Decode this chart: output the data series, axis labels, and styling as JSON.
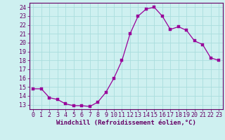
{
  "x": [
    0,
    1,
    2,
    3,
    4,
    5,
    6,
    7,
    8,
    9,
    10,
    11,
    12,
    13,
    14,
    15,
    16,
    17,
    18,
    19,
    20,
    21,
    22,
    23
  ],
  "y": [
    14.8,
    14.8,
    13.8,
    13.6,
    13.1,
    12.9,
    12.9,
    12.8,
    13.3,
    14.4,
    16.0,
    18.0,
    21.0,
    23.0,
    23.8,
    24.0,
    23.0,
    21.5,
    21.8,
    21.4,
    20.2,
    19.8,
    18.3,
    18.0
  ],
  "line_color": "#990099",
  "marker_color": "#990099",
  "bg_color": "#cef0f0",
  "grid_color": "#aadddd",
  "xlabel": "Windchill (Refroidissement éolien,°C)",
  "xlim": [
    -0.5,
    23.5
  ],
  "ylim": [
    12.5,
    24.5
  ],
  "yticks": [
    13,
    14,
    15,
    16,
    17,
    18,
    19,
    20,
    21,
    22,
    23,
    24
  ],
  "xticks": [
    0,
    1,
    2,
    3,
    4,
    5,
    6,
    7,
    8,
    9,
    10,
    11,
    12,
    13,
    14,
    15,
    16,
    17,
    18,
    19,
    20,
    21,
    22,
    23
  ],
  "axis_label_color": "#660066",
  "tick_color": "#660066",
  "spine_color": "#660066",
  "font_size": 6.0,
  "xlabel_fontsize": 6.5
}
